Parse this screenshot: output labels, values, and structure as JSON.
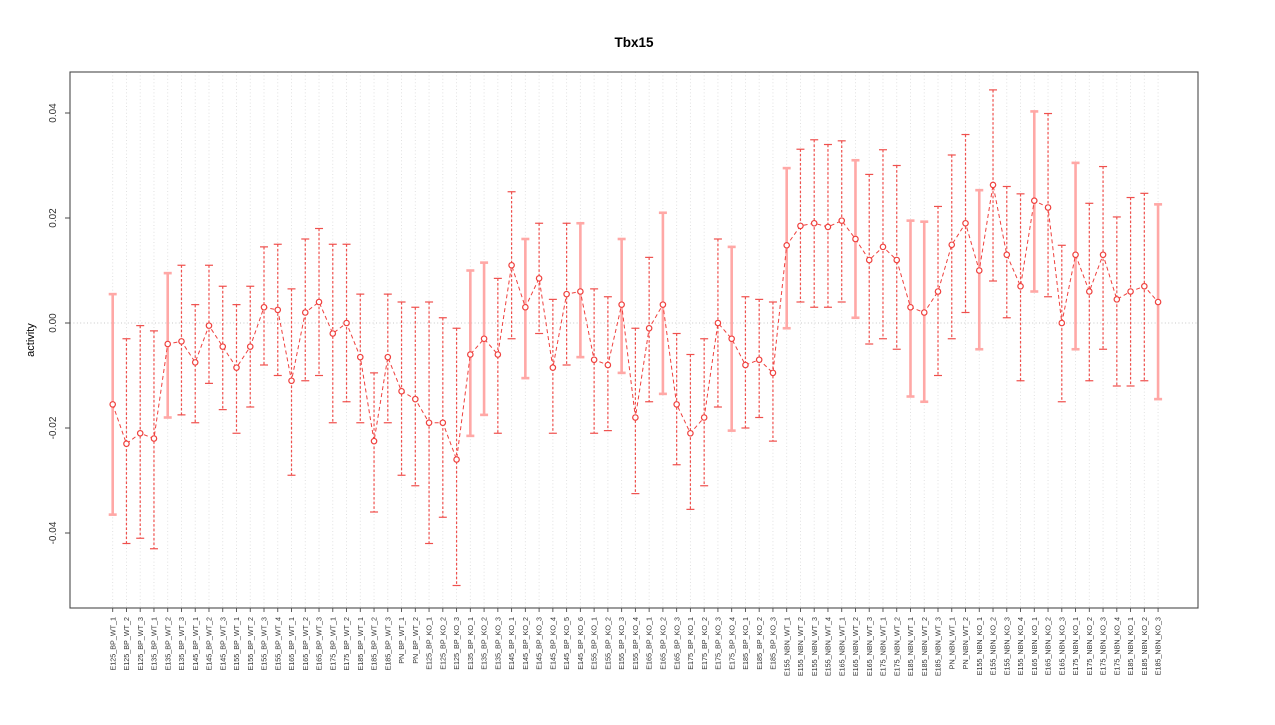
{
  "chart_data": {
    "type": "scatter",
    "title": "Tbx15",
    "ylabel": "activity",
    "xlabel": "",
    "legend": "none",
    "grid": {
      "vertical_dotted_per_category": true,
      "horizontal_zero_line_dotted": true,
      "other_horizontal_gridlines": false
    },
    "ylim": [
      -0.054,
      0.048
    ],
    "yticks": [
      -0.04,
      -0.02,
      0,
      0.02,
      0.04
    ],
    "ytick_labels": [
      "-0.04",
      "-0.02",
      "0.00",
      "0.02",
      "0.04"
    ],
    "categories": [
      "E125_BP_WT_1",
      "E125_BP_WT_2",
      "E125_BP_WT_3",
      "E135_BP_WT_1",
      "E135_BP_WT_2",
      "E135_BP_WT_3",
      "E145_BP_WT_1",
      "E145_BP_WT_2",
      "E145_BP_WT_3",
      "E155_BP_WT_1",
      "E155_BP_WT_2",
      "E155_BP_WT_3",
      "E155_BP_WT_4",
      "E165_BP_WT_1",
      "E165_BP_WT_2",
      "E165_BP_WT_3",
      "E175_BP_WT_1",
      "E175_BP_WT_2",
      "E185_BP_WT_1",
      "E185_BP_WT_2",
      "E185_BP_WT_3",
      "PN_BP_WT_1",
      "PN_BP_WT_2",
      "E125_BP_KO_1",
      "E125_BP_KO_2",
      "E125_BP_KO_3",
      "E135_BP_KO_1",
      "E135_BP_KO_2",
      "E135_BP_KO_3",
      "E145_BP_KO_1",
      "E145_BP_KO_2",
      "E145_BP_KO_3",
      "E145_BP_KO_4",
      "E145_BP_KO_5",
      "E145_BP_KO_6",
      "E155_BP_KO_1",
      "E155_BP_KO_2",
      "E155_BP_KO_3",
      "E155_BP_KO_4",
      "E165_BP_KO_1",
      "E165_BP_KO_2",
      "E165_BP_KO_3",
      "E175_BP_KO_1",
      "E175_BP_KO_2",
      "E175_BP_KO_3",
      "E175_BP_KO_4",
      "E185_BP_KO_1",
      "E185_BP_KO_2",
      "E185_BP_KO_3",
      "E155_NBN_WT_1",
      "E155_NBN_WT_2",
      "E155_NBN_WT_3",
      "E155_NBN_WT_4",
      "E165_NBN_WT_1",
      "E165_NBN_WT_2",
      "E165_NBN_WT_3",
      "E175_NBN_WT_1",
      "E175_NBN_WT_2",
      "E185_NBN_WT_1",
      "E185_NBN_WT_2",
      "E185_NBN_WT_3",
      "PN_NBN_WT_1",
      "PN_NBN_WT_2",
      "E155_NBN_KO_1",
      "E155_NBN_KO_2",
      "E155_NBN_KO_3",
      "E155_NBN_KO_4",
      "E165_NBN_KO_1",
      "E165_NBN_KO_2",
      "E165_NBN_KO_3",
      "E175_NBN_KO_1",
      "E175_NBN_KO_2",
      "E175_NBN_KO_3",
      "E175_NBN_KO_4",
      "E185_NBN_KO_1",
      "E185_NBN_KO_2",
      "E185_NBN_KO_3"
    ],
    "series": [
      {
        "name": "activity",
        "values": [
          -0.0155,
          -0.023,
          -0.021,
          -0.022,
          -0.004,
          -0.0035,
          -0.0075,
          -0.0005,
          -0.0045,
          -0.0085,
          -0.0045,
          0.003,
          0.0025,
          -0.011,
          0.002,
          0.004,
          -0.002,
          0.0,
          -0.0065,
          -0.0225,
          -0.0065,
          -0.013,
          -0.0145,
          -0.019,
          -0.019,
          -0.026,
          -0.006,
          -0.003,
          -0.006,
          0.011,
          0.003,
          0.0085,
          -0.0085,
          0.0055,
          0.006,
          -0.007,
          -0.008,
          0.0035,
          -0.018,
          -0.001,
          0.0035,
          -0.0155,
          -0.021,
          -0.018,
          0.0,
          -0.003,
          -0.008,
          -0.007,
          -0.0095,
          0.0148,
          0.0185,
          0.019,
          0.0183,
          0.0195,
          0.016,
          0.012,
          0.0145,
          0.012,
          0.003,
          0.002,
          0.006,
          0.0149,
          0.019,
          0.01,
          0.0263,
          0.013,
          0.007,
          0.0233,
          0.022,
          0.0,
          0.013,
          0.006,
          0.013,
          0.0045,
          0.006,
          0.007,
          0.004
        ]
      }
    ],
    "error_low": [
      -0.0365,
      -0.042,
      -0.041,
      -0.043,
      -0.018,
      -0.0175,
      -0.019,
      -0.0115,
      -0.0165,
      -0.021,
      -0.016,
      -0.008,
      -0.01,
      -0.029,
      -0.011,
      -0.01,
      -0.019,
      -0.015,
      -0.019,
      -0.036,
      -0.019,
      -0.029,
      -0.031,
      -0.042,
      -0.037,
      -0.05,
      -0.0215,
      -0.0175,
      -0.021,
      -0.003,
      -0.0105,
      -0.002,
      -0.021,
      -0.008,
      -0.0065,
      -0.021,
      -0.0205,
      -0.0095,
      -0.0325,
      -0.015,
      -0.0135,
      -0.027,
      -0.0355,
      -0.031,
      -0.016,
      -0.0205,
      -0.02,
      -0.018,
      -0.0225,
      -0.001,
      0.004,
      0.003,
      0.003,
      0.004,
      0.001,
      -0.004,
      -0.003,
      -0.005,
      -0.014,
      -0.015,
      -0.01,
      -0.003,
      0.002,
      -0.005,
      0.008,
      0.001,
      -0.011,
      0.006,
      0.005,
      -0.015,
      -0.005,
      -0.011,
      -0.005,
      -0.012,
      -0.012,
      -0.011,
      -0.0145
    ],
    "error_high": [
      0.0055,
      -0.003,
      -0.0005,
      -0.0015,
      0.0095,
      0.011,
      0.0035,
      0.011,
      0.007,
      0.0035,
      0.007,
      0.0145,
      0.015,
      0.0065,
      0.016,
      0.018,
      0.015,
      0.015,
      0.0055,
      -0.0095,
      0.0055,
      0.004,
      0.003,
      0.004,
      0.001,
      -0.001,
      0.01,
      0.0115,
      0.0085,
      0.025,
      0.016,
      0.019,
      0.0045,
      0.019,
      0.019,
      0.0065,
      0.005,
      0.016,
      -0.001,
      0.0125,
      0.021,
      -0.002,
      -0.006,
      -0.003,
      0.016,
      0.0145,
      0.005,
      0.0045,
      0.004,
      0.0295,
      0.0331,
      0.0349,
      0.034,
      0.0347,
      0.031,
      0.0283,
      0.033,
      0.03,
      0.0195,
      0.0193,
      0.0222,
      0.032,
      0.0359,
      0.0253,
      0.0444,
      0.026,
      0.0246,
      0.0403,
      0.0399,
      0.0148,
      0.0305,
      0.0228,
      0.0298,
      0.0202,
      0.0239,
      0.0247,
      0.0226
    ],
    "pale_bar_indices": [
      0,
      4,
      26,
      27,
      30,
      34,
      37,
      40,
      45,
      49,
      54,
      58,
      59,
      63,
      67,
      70,
      76
    ],
    "colors": {
      "point": "#ef413e",
      "line": "#ef413e",
      "error_bright": "#ef504d",
      "error_pale": "#ffa8a6",
      "grid": "#dedede",
      "zero_line": "#c9c9c9",
      "box": "#4a4a4a",
      "tick_text": "#333333"
    }
  }
}
